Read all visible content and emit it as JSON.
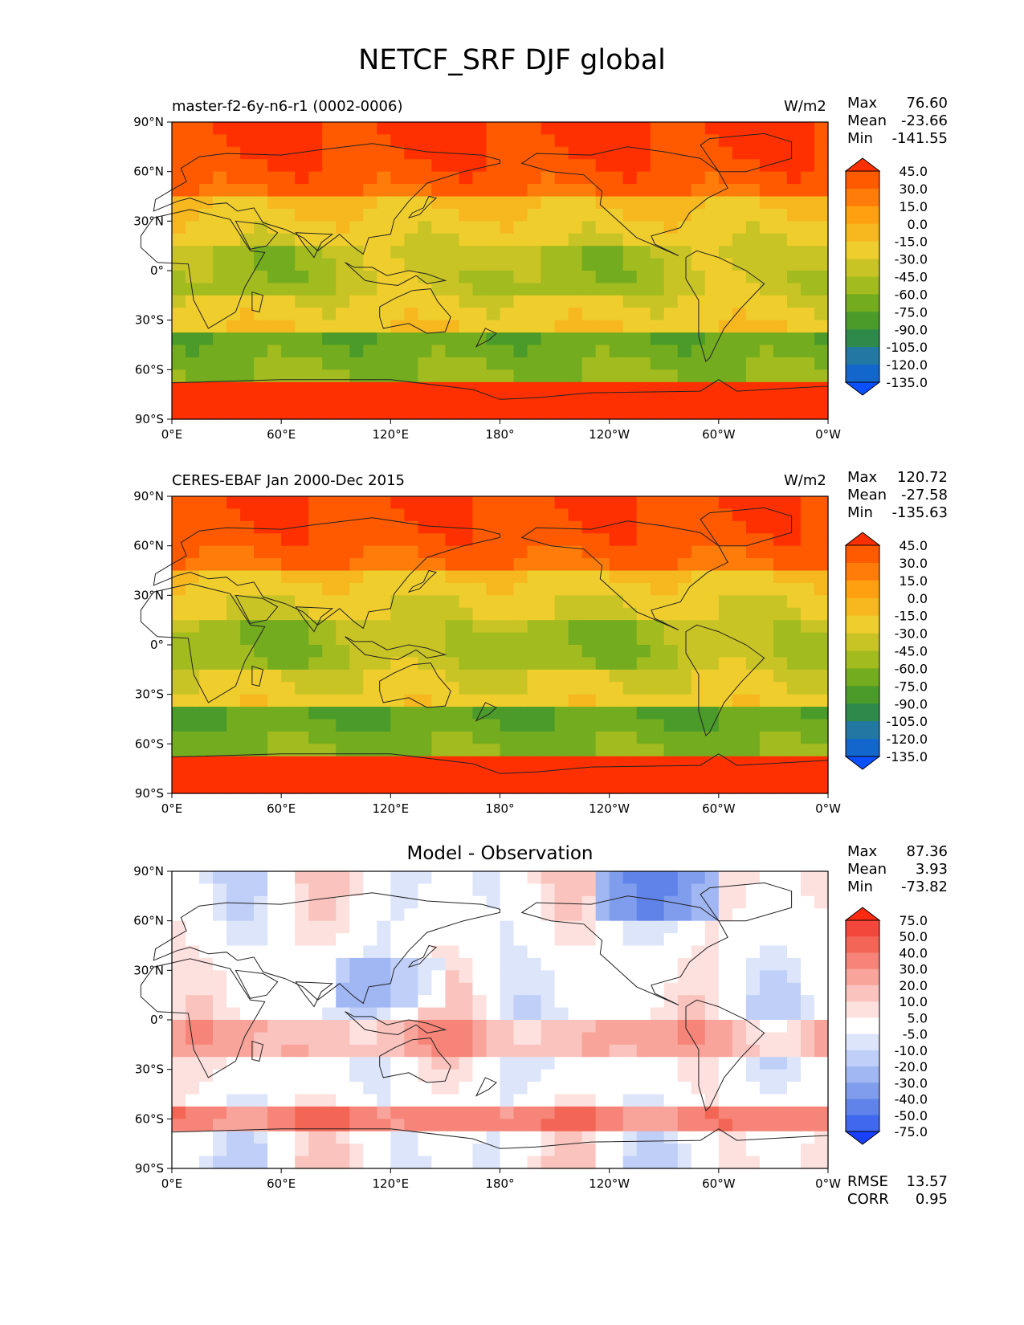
{
  "title": "NETCF_SRF DJF global",
  "x_ticks": [
    "0°E",
    "60°E",
    "120°E",
    "180°",
    "120°W",
    "60°W",
    "0°W"
  ],
  "y_ticks": [
    "90°N",
    "60°N",
    "30°N",
    "0°",
    "30°S",
    "60°S",
    "90°S"
  ],
  "chart_data": [
    {
      "type": "heatmap",
      "map": "global contour map (longitude 0°E to 360°, latitude 90°S to 90°N)",
      "left_title": "master-f2-6y-n6-r1 (0002-0006)",
      "right_title": "W/m2",
      "x_ticks": [
        "0°E",
        "60°E",
        "120°E",
        "180°",
        "120°W",
        "60°W",
        "0°W"
      ],
      "y_ticks": [
        "90°N",
        "60°N",
        "30°N",
        "0°",
        "30°S",
        "60°S",
        "90°S"
      ],
      "stats": {
        "Max": "76.60",
        "Mean": "-23.66",
        "Min": "-141.55"
      },
      "colorbar": {
        "ticks": [
          "45.0",
          "30.0",
          "15.0",
          "0.0",
          "-15.0",
          "-30.0",
          "-45.0",
          "-60.0",
          "-75.0",
          "-90.0",
          "-105.0",
          "-120.0",
          "-135.0"
        ],
        "colors": [
          "#ff3000",
          "#ff5a00",
          "#ff7c0a",
          "#ffa010",
          "#f7b71e",
          "#efcd2d",
          "#c9c425",
          "#a2bb1f",
          "#73ac1f",
          "#4a9b2a",
          "#2e8a4a",
          "#2278a3",
          "#1366cc",
          "#0a50ff"
        ]
      }
    },
    {
      "type": "heatmap",
      "map": "global contour map (longitude 0°E to 360°, latitude 90°S to 90°N)",
      "left_title": "CERES-EBAF Jan 2000-Dec 2015",
      "right_title": "W/m2",
      "x_ticks": [
        "0°E",
        "60°E",
        "120°E",
        "180°",
        "120°W",
        "60°W",
        "0°W"
      ],
      "y_ticks": [
        "90°N",
        "60°N",
        "30°N",
        "0°",
        "30°S",
        "60°S",
        "90°S"
      ],
      "stats": {
        "Max": "120.72",
        "Mean": "-27.58",
        "Min": "-135.63"
      },
      "colorbar": {
        "ticks": [
          "45.0",
          "30.0",
          "15.0",
          "0.0",
          "-15.0",
          "-30.0",
          "-45.0",
          "-60.0",
          "-75.0",
          "-90.0",
          "-105.0",
          "-120.0",
          "-135.0"
        ],
        "colors": [
          "#ff3000",
          "#ff5a00",
          "#ff7c0a",
          "#ffa010",
          "#f7b71e",
          "#efcd2d",
          "#c9c425",
          "#a2bb1f",
          "#73ac1f",
          "#4a9b2a",
          "#2e8a4a",
          "#2278a3",
          "#1366cc",
          "#0a50ff"
        ]
      }
    },
    {
      "type": "heatmap",
      "map": "global contour map of model minus observation difference",
      "center_title": "Model - Observation",
      "x_ticks": [
        "0°E",
        "60°E",
        "120°E",
        "180°",
        "120°W",
        "60°W",
        "0°W"
      ],
      "y_ticks": [
        "90°N",
        "60°N",
        "30°N",
        "0°",
        "30°S",
        "60°S",
        "90°S"
      ],
      "stats": {
        "Max": "87.36",
        "Mean": "3.93",
        "Min": "-73.82"
      },
      "extra_stats": {
        "RMSE": "13.57",
        "CORR": "0.95"
      },
      "colorbar": {
        "ticks": [
          "75.0",
          "50.0",
          "40.0",
          "30.0",
          "20.0",
          "10.0",
          "5.0",
          "-5.0",
          "-10.0",
          "-20.0",
          "-30.0",
          "-40.0",
          "-50.0",
          "-75.0"
        ],
        "colors": [
          "#ff2a10",
          "#f2473a",
          "#f36655",
          "#f68478",
          "#f8a49b",
          "#fac3bd",
          "#fde1de",
          "#ffffff",
          "#dde5fb",
          "#c0cff8",
          "#a1b7f3",
          "#809ded",
          "#5f83e9",
          "#3f68ee",
          "#1a40ff"
        ]
      }
    }
  ]
}
